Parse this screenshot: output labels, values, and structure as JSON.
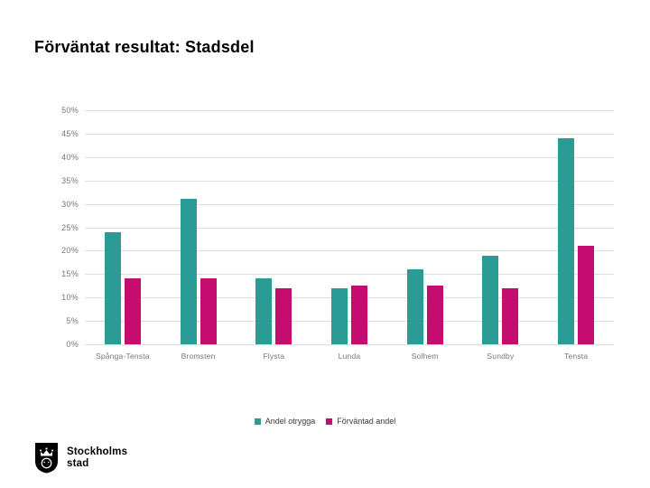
{
  "slide": {
    "title": "Förväntat resultat: Stadsdel"
  },
  "logo": {
    "line1": "Stockholms",
    "line2": "stad",
    "shield_icon": "st-erik-crowned-head-shield"
  },
  "colors": {
    "series_otrygga": "#2a9c95",
    "series_forvantad": "#c40d6e",
    "gridline": "#dcdcdc",
    "axis_text": "#767676",
    "legend_text": "#3a3a3a",
    "title_text": "#000000"
  },
  "chart_data": {
    "type": "bar",
    "title": "Förväntat resultat: Stadsdel",
    "categories": [
      "Spånga-Tensta",
      "Bromsten",
      "Flysta",
      "Lunda",
      "Solhem",
      "Sundby",
      "Tensta"
    ],
    "series": [
      {
        "name": "Andel otrygga",
        "color": "#2a9c95",
        "values": [
          24,
          31,
          14,
          12,
          16,
          19,
          44
        ]
      },
      {
        "name": "Förväntad andel",
        "color": "#c40d6e",
        "values": [
          14,
          14,
          12,
          12.5,
          12.5,
          12,
          21
        ]
      }
    ],
    "y_axis": {
      "min": 0,
      "max": 50,
      "step": 5,
      "suffix": "%",
      "tick_labels": [
        "0%",
        "5%",
        "10%",
        "15%",
        "20%",
        "25%",
        "30%",
        "35%",
        "40%",
        "45%",
        "50%"
      ]
    },
    "xlabel": "",
    "ylabel": "",
    "grid": true,
    "legend_position": "bottom"
  }
}
